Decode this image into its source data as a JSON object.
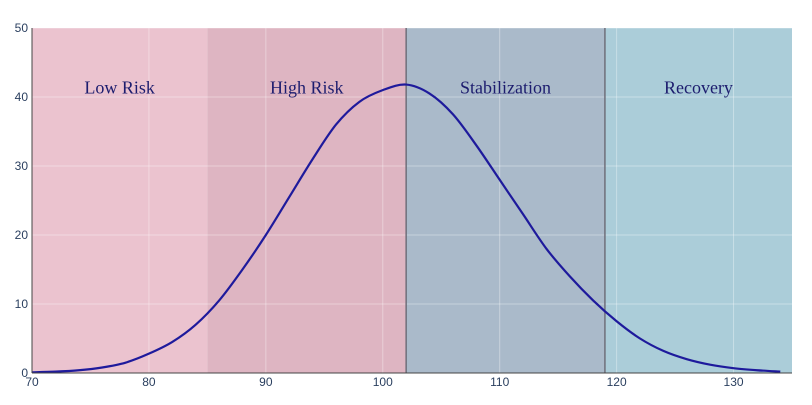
{
  "chart_data": {
    "type": "area",
    "title": "",
    "xlabel": "",
    "ylabel": "",
    "xlim": [
      70,
      135
    ],
    "ylim": [
      0,
      50
    ],
    "x_ticks": [
      70,
      80,
      90,
      100,
      110,
      120,
      130
    ],
    "y_ticks": [
      0,
      10,
      20,
      30,
      40,
      50
    ],
    "grid": true,
    "regions": [
      {
        "label": "Low Risk",
        "x0": 70,
        "x1": 85,
        "color": "#ebc3cf"
      },
      {
        "label": "High Risk",
        "x0": 85,
        "x1": 102,
        "color": "#deb5c2"
      },
      {
        "label": "Stabilization",
        "x0": 102,
        "x1": 119,
        "color": "#aabaca"
      },
      {
        "label": "Recovery",
        "x0": 119,
        "x1": 135,
        "color": "#abcdd9"
      }
    ],
    "region_borders": [
      102,
      119
    ],
    "series": [
      {
        "color": "#1e1a9c",
        "x": [
          70,
          72,
          74,
          76,
          78,
          80,
          82,
          84,
          86,
          88,
          90,
          92,
          94,
          96,
          98,
          100,
          102,
          104,
          106,
          108,
          110,
          112,
          114,
          116,
          118,
          120,
          122,
          124,
          126,
          128,
          130,
          132,
          134
        ],
        "y": [
          0.1,
          0.2,
          0.4,
          0.8,
          1.5,
          2.8,
          4.5,
          7.0,
          10.5,
          15.0,
          20.0,
          25.5,
          31.0,
          36.0,
          39.3,
          41.0,
          41.8,
          40.5,
          37.5,
          33.0,
          28.0,
          23.0,
          18.0,
          14.0,
          10.5,
          7.5,
          5.0,
          3.2,
          2.0,
          1.2,
          0.7,
          0.4,
          0.2
        ]
      }
    ]
  }
}
